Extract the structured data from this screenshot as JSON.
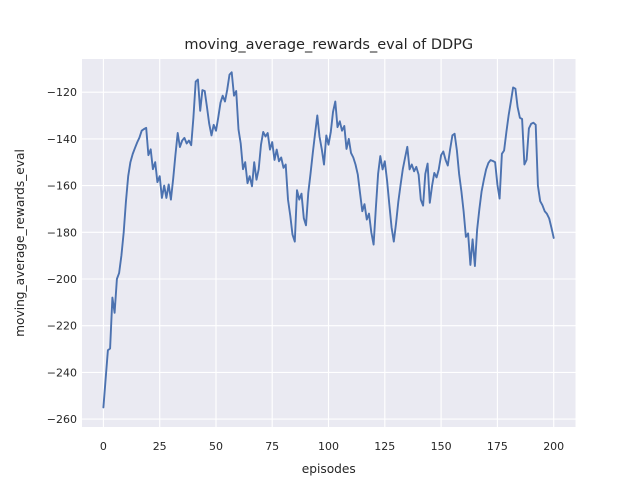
{
  "chart_data": {
    "type": "line",
    "title": "moving_average_rewards_eval of DDPG",
    "xlabel": "episodes",
    "ylabel": "moving_average_rewards_eval",
    "grid": true,
    "legend": false,
    "xlim": [
      -9.5,
      209.7
    ],
    "ylim": [
      -263.4,
      -105.8
    ],
    "x_ticks": {
      "values": [
        0,
        25,
        50,
        75,
        100,
        125,
        150,
        175,
        200
      ],
      "labels": [
        "0",
        "25",
        "50",
        "75",
        "100",
        "125",
        "150",
        "175",
        "200"
      ]
    },
    "y_ticks": {
      "values": [
        -120,
        -140,
        -160,
        -180,
        -200,
        -220,
        -240,
        -260
      ],
      "labels": [
        "−120",
        "−140",
        "−160",
        "−180",
        "−200",
        "−220",
        "−240",
        "−260"
      ]
    },
    "colors": {
      "figure_background": "#ffffff",
      "axes_background": "#eaeaf2",
      "grid": "#ffffff",
      "line": "#4c72b0",
      "text": "#262626"
    },
    "series": [
      {
        "name": "moving_average_rewards_eval",
        "color": "#4c72b0",
        "x_start": 0,
        "x_step": 1,
        "values": [
          -255,
          -243,
          -230.5,
          -229.8,
          -208,
          -214.5,
          -200,
          -197.5,
          -190,
          -180,
          -167,
          -156,
          -150,
          -146.5,
          -144,
          -141.5,
          -139.5,
          -136.5,
          -135.8,
          -135.3,
          -147,
          -144.5,
          -153,
          -150,
          -158.5,
          -156,
          -165.3,
          -160,
          -165.3,
          -159.5,
          -166,
          -157,
          -147,
          -137.5,
          -143.5,
          -140.7,
          -139.6,
          -142,
          -140.7,
          -142.7,
          -131,
          -115.5,
          -114.6,
          -128,
          -119.1,
          -119.5,
          -126.5,
          -133.5,
          -138.5,
          -134,
          -136.5,
          -131,
          -124.5,
          -121.5,
          -124,
          -119,
          -112.5,
          -111.5,
          -121.5,
          -119.5,
          -136,
          -142,
          -153,
          -150,
          -159,
          -156,
          -160.3,
          -150,
          -157.5,
          -153,
          -142.5,
          -137,
          -139,
          -137.5,
          -144.6,
          -141.4,
          -149,
          -144.6,
          -149.6,
          -148,
          -152.4,
          -151,
          -166,
          -173,
          -181,
          -184,
          -162,
          -166,
          -163.5,
          -174,
          -177,
          -163,
          -155,
          -146,
          -138,
          -130,
          -139,
          -144.5,
          -151,
          -138.5,
          -142.5,
          -137,
          -128.5,
          -124,
          -135,
          -132.5,
          -136.5,
          -134.5,
          -144.3,
          -140,
          -146,
          -148,
          -151,
          -155.3,
          -163.1,
          -171,
          -168,
          -174.6,
          -172,
          -180,
          -185.3,
          -170,
          -155,
          -147.4,
          -153.1,
          -149.6,
          -158,
          -168,
          -178,
          -184,
          -176,
          -167,
          -159.6,
          -153,
          -148,
          -143.4,
          -153.1,
          -151,
          -153.9,
          -152,
          -155.3,
          -166,
          -168.6,
          -155,
          -150.6,
          -167.4,
          -160,
          -154.6,
          -156.5,
          -153,
          -147,
          -145.4,
          -149,
          -151.4,
          -144.5,
          -138.5,
          -137.8,
          -145,
          -155,
          -162.5,
          -171,
          -182,
          -180.5,
          -194,
          -183,
          -194.5,
          -179,
          -170,
          -162.5,
          -157.4,
          -153.1,
          -150.3,
          -149.1,
          -149.5,
          -150,
          -159.6,
          -165.6,
          -146.4,
          -145,
          -137,
          -130,
          -124,
          -118,
          -118.5,
          -126.4,
          -131,
          -131.5,
          -151,
          -149,
          -135.5,
          -133.6,
          -133.1,
          -134,
          -160,
          -166.7,
          -168.4,
          -171,
          -172.1,
          -174.1,
          -178,
          -182.4
        ]
      }
    ]
  }
}
